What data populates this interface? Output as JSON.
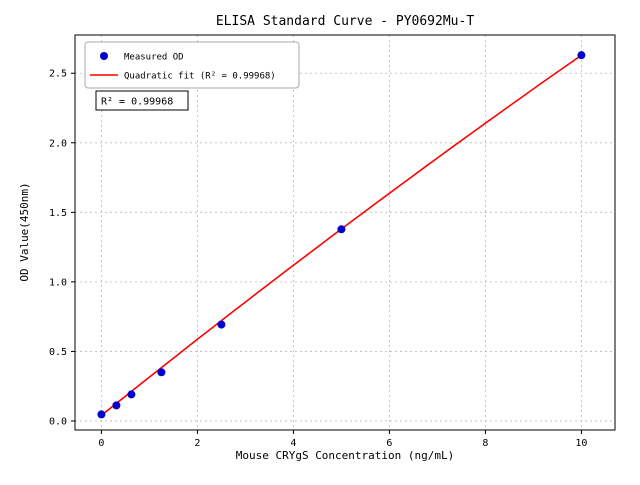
{
  "chart_data": {
    "type": "scatter",
    "title": "ELISA Standard Curve - PY0692Mu-T",
    "xlabel": "Mouse CRYgS Concentration (ng/mL)",
    "ylabel": "OD Value(450nm)",
    "xlim": [
      -0.55,
      10.7
    ],
    "ylim": [
      -0.065,
      2.775
    ],
    "grid": true,
    "grid_style": "dashed",
    "xticks": {
      "values": [
        0,
        2,
        4,
        6,
        8,
        10
      ],
      "labels": [
        "0",
        "2",
        "4",
        "6",
        "8",
        "10"
      ]
    },
    "yticks": {
      "values": [
        0,
        0.5,
        1.0,
        1.5,
        2.0,
        2.5
      ],
      "labels": [
        "0.0",
        "0.5",
        "1.0",
        "1.5",
        "2.0",
        "2.5"
      ]
    },
    "series": [
      {
        "name": "Measured OD",
        "type": "scatter",
        "color": "#0000cc",
        "points": [
          [
            0,
            0.047
          ],
          [
            0.3125,
            0.112
          ],
          [
            0.625,
            0.191
          ],
          [
            1.25,
            0.35
          ],
          [
            2.5,
            0.693
          ],
          [
            5,
            1.378
          ],
          [
            10,
            2.63
          ]
        ]
      },
      {
        "name": "Quadratic fit (R² = 0.99968)",
        "type": "line",
        "color": "#ff0000",
        "fit_coeffs": [
          0.04,
          0.277,
          -0.0018
        ],
        "x_range": [
          0,
          10
        ]
      }
    ],
    "legend": {
      "position": "upper left",
      "entries": [
        "Measured OD",
        "Quadratic fit (R² = 0.99968)"
      ]
    },
    "annotation": {
      "text": "R² = 0.99968"
    },
    "r_squared": 0.99968,
    "colors": {
      "marker": "#0000cc",
      "fit_line": "#ff0000",
      "grid": "#bbbbbb",
      "frame": "#000000"
    }
  }
}
